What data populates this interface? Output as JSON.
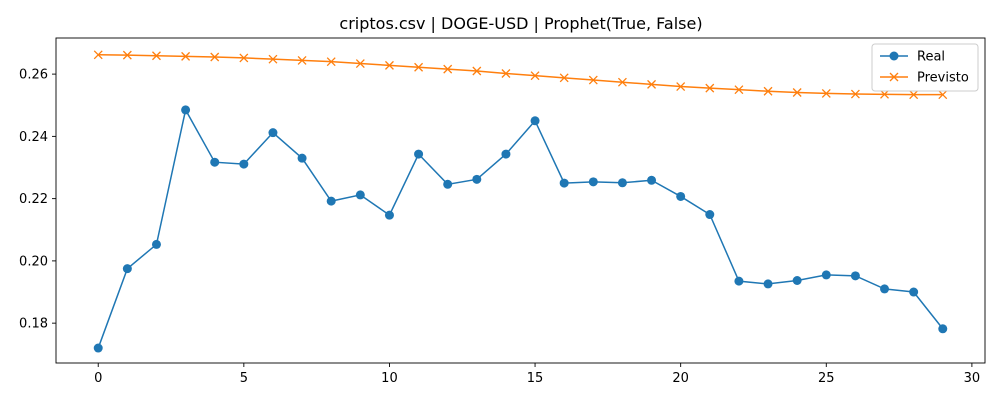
{
  "chart_data": {
    "type": "line",
    "title": "criptos.csv | DOGE-USD | Prophet(True, False)",
    "xlabel": "",
    "ylabel": "",
    "xlim": [
      -1.45,
      30.45
    ],
    "ylim": [
      0.1672,
      0.2716
    ],
    "xticks": [
      0,
      5,
      10,
      15,
      20,
      25,
      30
    ],
    "yticks": [
      0.18,
      0.2,
      0.22,
      0.24,
      0.26
    ],
    "ytick_labels": [
      "0.18",
      "0.20",
      "0.22",
      "0.24",
      "0.26"
    ],
    "grid": false,
    "legend_position": "top-right",
    "x": [
      0,
      1,
      2,
      3,
      4,
      5,
      6,
      7,
      8,
      9,
      10,
      11,
      12,
      13,
      14,
      15,
      16,
      17,
      18,
      19,
      20,
      21,
      22,
      23,
      24,
      25,
      26,
      27,
      28,
      29
    ],
    "series": [
      {
        "name": "Real",
        "color": "#1f77b4",
        "marker": "circle",
        "values": [
          0.172,
          0.1975,
          0.2053,
          0.2485,
          0.2317,
          0.2311,
          0.2412,
          0.233,
          0.2192,
          0.2212,
          0.2147,
          0.2343,
          0.2246,
          0.2262,
          0.2343,
          0.245,
          0.225,
          0.2254,
          0.2251,
          0.2259,
          0.2207,
          0.2149,
          0.1935,
          0.1926,
          0.1937,
          0.1955,
          0.1952,
          0.191,
          0.19,
          0.1782
        ]
      },
      {
        "name": "Previsto",
        "color": "#ff7f0e",
        "marker": "x",
        "values": [
          0.2662,
          0.2661,
          0.2659,
          0.2657,
          0.2655,
          0.2652,
          0.2648,
          0.2644,
          0.264,
          0.2634,
          0.2628,
          0.2622,
          0.2616,
          0.261,
          0.2602,
          0.2595,
          0.2588,
          0.2581,
          0.2574,
          0.2567,
          0.256,
          0.2555,
          0.255,
          0.2545,
          0.2541,
          0.2538,
          0.2536,
          0.2535,
          0.2534,
          0.2534
        ]
      }
    ]
  }
}
